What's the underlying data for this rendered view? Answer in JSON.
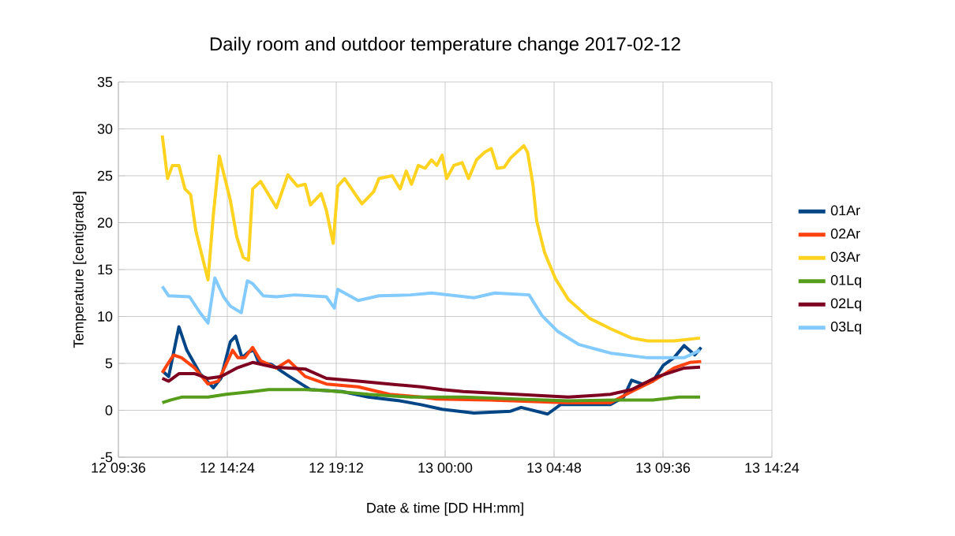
{
  "chart_data": {
    "type": "line",
    "title": "Daily room and outdoor temperature change 2017-02-12",
    "xlabel": "Date & time [DD HH:mm]",
    "ylabel": "Temperature [centigrade]",
    "xlim": [
      "2017-02-12T09:36",
      "2017-02-13T14:24"
    ],
    "xticks": [
      {
        "value": "2017-02-12T09:36",
        "label": "12 09:36"
      },
      {
        "value": "2017-02-12T14:24",
        "label": "12 14:24"
      },
      {
        "value": "2017-02-12T19:12",
        "label": "12 19:12"
      },
      {
        "value": "2017-02-13T00:00",
        "label": "13 00:00"
      },
      {
        "value": "2017-02-13T04:48",
        "label": "13 04:48"
      },
      {
        "value": "2017-02-13T09:36",
        "label": "13 09:36"
      },
      {
        "value": "2017-02-13T14:24",
        "label": "13 14:24"
      }
    ],
    "ylim": [
      -5,
      35
    ],
    "yticks": [
      -5,
      0,
      5,
      10,
      15,
      20,
      25,
      30,
      35
    ],
    "grid": true,
    "legend": "right",
    "marker": "none",
    "line_style": "solid",
    "series": [
      {
        "name": "01Ar",
        "color": "#004586",
        "x": [
          "2017-02-12T11:32",
          "2017-02-12T11:49",
          "2017-02-12T12:16",
          "2017-02-12T12:37",
          "2017-02-12T13:12",
          "2017-02-12T13:47",
          "2017-02-12T14:07",
          "2017-02-12T14:32",
          "2017-02-12T14:46",
          "2017-02-12T15:03",
          "2017-02-12T15:20",
          "2017-02-12T15:34",
          "2017-02-12T15:47",
          "2017-02-12T16:20",
          "2017-02-12T17:08",
          "2017-02-12T18:04",
          "2017-02-12T18:46",
          "2017-02-12T19:28",
          "2017-02-12T20:37",
          "2017-02-12T22:01",
          "2017-02-12T22:56",
          "2017-02-12T23:52",
          "2017-02-13T01:16",
          "2017-02-13T02:53",
          "2017-02-13T03:21",
          "2017-02-13T04:31",
          "2017-02-13T05:05",
          "2017-02-13T07:17",
          "2017-02-13T07:52",
          "2017-02-13T08:13",
          "2017-02-13T08:41",
          "2017-02-13T09:09",
          "2017-02-13T09:37",
          "2017-02-13T10:05",
          "2017-02-13T10:32",
          "2017-02-13T11:00",
          "2017-02-13T11:17"
        ],
        "values": [
          4.2,
          3.6,
          8.9,
          6.4,
          3.9,
          2.4,
          3.4,
          7.3,
          7.9,
          5.6,
          6.2,
          6.4,
          5.1,
          4.9,
          3.6,
          2.2,
          2.1,
          2.0,
          1.4,
          1.0,
          0.6,
          0.1,
          -0.3,
          -0.1,
          0.3,
          -0.4,
          0.6,
          0.6,
          1.4,
          3.2,
          2.8,
          3.1,
          4.8,
          5.6,
          6.9,
          5.9,
          6.7
        ]
      },
      {
        "name": "02Ar",
        "color": "#ff420e",
        "x": [
          "2017-02-12T11:32",
          "2017-02-12T11:49",
          "2017-02-12T12:02",
          "2017-02-12T12:23",
          "2017-02-12T12:58",
          "2017-02-12T13:33",
          "2017-02-12T14:00",
          "2017-02-12T14:38",
          "2017-02-12T14:52",
          "2017-02-12T15:10",
          "2017-02-12T15:31",
          "2017-02-12T15:52",
          "2017-02-12T16:34",
          "2017-02-12T17:06",
          "2017-02-12T17:50",
          "2017-02-12T18:46",
          "2017-02-12T20:10",
          "2017-02-12T21:33",
          "2017-02-12T22:56",
          "2017-02-12T23:38",
          "2017-02-13T01:58",
          "2017-02-13T05:26",
          "2017-02-13T07:17",
          "2017-02-13T08:13",
          "2017-02-13T09:09",
          "2017-02-13T10:05",
          "2017-02-13T10:47",
          "2017-02-13T11:17"
        ],
        "values": [
          4.0,
          5.1,
          5.9,
          5.6,
          4.5,
          2.8,
          3.1,
          6.4,
          5.6,
          5.6,
          6.7,
          5.3,
          4.5,
          5.3,
          3.6,
          2.8,
          2.5,
          1.7,
          1.4,
          1.2,
          1.1,
          0.8,
          0.8,
          2.0,
          3.1,
          4.5,
          5.1,
          5.2
        ]
      },
      {
        "name": "03Ar",
        "color": "#ffd320",
        "x": [
          "2017-02-12T11:32",
          "2017-02-12T11:46",
          "2017-02-12T11:59",
          "2017-02-12T12:16",
          "2017-02-12T12:32",
          "2017-02-12T12:47",
          "2017-02-12T13:01",
          "2017-02-12T13:33",
          "2017-02-12T13:47",
          "2017-02-12T14:03",
          "2017-02-12T14:32",
          "2017-02-12T14:49",
          "2017-02-12T15:06",
          "2017-02-12T15:20",
          "2017-02-12T15:31",
          "2017-02-12T15:52",
          "2017-02-12T16:34",
          "2017-02-12T17:04",
          "2017-02-12T17:29",
          "2017-02-12T17:50",
          "2017-02-12T18:04",
          "2017-02-12T18:32",
          "2017-02-12T18:46",
          "2017-02-12T19:04",
          "2017-02-12T19:16",
          "2017-02-12T19:34",
          "2017-02-12T20:20",
          "2017-02-12T20:51",
          "2017-02-12T21:05",
          "2017-02-12T21:40",
          "2017-02-12T22:01",
          "2017-02-12T22:17",
          "2017-02-12T22:31",
          "2017-02-12T22:49",
          "2017-02-12T23:07",
          "2017-02-12T23:24",
          "2017-02-12T23:38",
          "2017-02-12T23:52",
          "2017-02-13T00:04",
          "2017-02-13T00:23",
          "2017-02-13T00:45",
          "2017-02-13T01:02",
          "2017-02-13T01:23",
          "2017-02-13T01:44",
          "2017-02-13T02:02",
          "2017-02-13T02:18",
          "2017-02-13T02:36",
          "2017-02-13T02:53",
          "2017-02-13T03:28",
          "2017-02-13T03:38",
          "2017-02-13T03:52",
          "2017-02-13T04:02",
          "2017-02-13T04:23",
          "2017-02-13T04:52",
          "2017-02-13T05:26",
          "2017-02-13T06:22",
          "2017-02-13T07:17",
          "2017-02-13T08:13",
          "2017-02-13T08:55",
          "2017-02-13T10:05",
          "2017-02-13T11:14"
        ],
        "values": [
          29.3,
          24.7,
          26.1,
          26.1,
          23.6,
          23.0,
          19.1,
          13.9,
          20.8,
          27.1,
          22.4,
          18.5,
          16.3,
          16.0,
          23.6,
          24.4,
          21.6,
          25.1,
          23.9,
          24.1,
          21.9,
          23.1,
          21.3,
          17.8,
          23.9,
          24.7,
          22.0,
          23.3,
          24.7,
          25.0,
          23.6,
          25.5,
          24.1,
          26.1,
          25.8,
          26.7,
          26.1,
          27.2,
          24.7,
          26.1,
          26.4,
          24.7,
          26.7,
          27.5,
          27.9,
          25.8,
          25.9,
          26.9,
          28.2,
          27.5,
          24.1,
          20.2,
          16.8,
          14.0,
          11.8,
          9.8,
          8.7,
          7.7,
          7.4,
          7.4,
          7.7
        ]
      },
      {
        "name": "01Lq",
        "color": "#579d1c",
        "x": [
          "2017-02-12T11:32",
          "2017-02-12T11:55",
          "2017-02-12T12:23",
          "2017-02-12T13:33",
          "2017-02-12T14:21",
          "2017-02-12T15:31",
          "2017-02-12T16:13",
          "2017-02-12T17:50",
          "2017-02-12T18:46",
          "2017-02-12T20:37",
          "2017-02-12T22:29",
          "2017-02-13T00:48",
          "2017-02-13T03:07",
          "2017-02-13T05:26",
          "2017-02-13T07:45",
          "2017-02-13T09:09",
          "2017-02-13T10:19",
          "2017-02-13T11:14"
        ],
        "values": [
          0.8,
          1.1,
          1.4,
          1.4,
          1.7,
          2.0,
          2.2,
          2.2,
          2.1,
          1.7,
          1.4,
          1.4,
          1.2,
          1.0,
          1.1,
          1.1,
          1.4,
          1.4
        ]
      },
      {
        "name": "02Lq",
        "color": "#7e0021",
        "x": [
          "2017-02-12T11:32",
          "2017-02-12T11:49",
          "2017-02-12T12:16",
          "2017-02-12T12:58",
          "2017-02-12T13:33",
          "2017-02-12T14:07",
          "2017-02-12T14:49",
          "2017-02-12T15:31",
          "2017-02-12T16:27",
          "2017-02-12T17:50",
          "2017-02-12T18:46",
          "2017-02-12T20:10",
          "2017-02-12T21:33",
          "2017-02-12T22:56",
          "2017-02-12T23:52",
          "2017-02-13T00:48",
          "2017-02-13T03:07",
          "2017-02-13T05:26",
          "2017-02-13T07:17",
          "2017-02-13T08:13",
          "2017-02-13T09:23",
          "2017-02-13T10:32",
          "2017-02-13T11:14"
        ],
        "values": [
          3.4,
          3.1,
          3.9,
          3.9,
          3.4,
          3.6,
          4.5,
          5.1,
          4.6,
          4.4,
          3.4,
          3.1,
          2.8,
          2.5,
          2.2,
          2.0,
          1.7,
          1.4,
          1.7,
          2.2,
          3.6,
          4.5,
          4.6
        ]
      },
      {
        "name": "03Lq",
        "color": "#83caff",
        "x": [
          "2017-02-12T11:32",
          "2017-02-12T11:49",
          "2017-02-12T12:44",
          "2017-02-12T13:12",
          "2017-02-12T13:33",
          "2017-02-12T13:51",
          "2017-02-12T14:14",
          "2017-02-12T14:32",
          "2017-02-12T15:01",
          "2017-02-12T15:17",
          "2017-02-12T15:31",
          "2017-02-12T15:59",
          "2017-02-12T16:34",
          "2017-02-12T17:22",
          "2017-02-12T18:46",
          "2017-02-12T19:07",
          "2017-02-12T19:16",
          "2017-02-12T20:10",
          "2017-02-12T21:05",
          "2017-02-12T22:29",
          "2017-02-12T23:24",
          "2017-02-13T01:16",
          "2017-02-13T02:11",
          "2017-02-13T03:42",
          "2017-02-13T04:16",
          "2017-02-13T04:58",
          "2017-02-13T05:54",
          "2017-02-13T07:17",
          "2017-02-13T08:55",
          "2017-02-13T10:32",
          "2017-02-13T11:14"
        ],
        "values": [
          13.2,
          12.2,
          12.1,
          10.4,
          9.3,
          14.1,
          12.1,
          11.1,
          10.4,
          13.8,
          13.5,
          12.2,
          12.1,
          12.3,
          12.1,
          10.9,
          12.9,
          11.7,
          12.2,
          12.3,
          12.5,
          12.0,
          12.5,
          12.3,
          10.1,
          8.4,
          7.0,
          6.1,
          5.6,
          5.6,
          6.4
        ]
      }
    ]
  }
}
